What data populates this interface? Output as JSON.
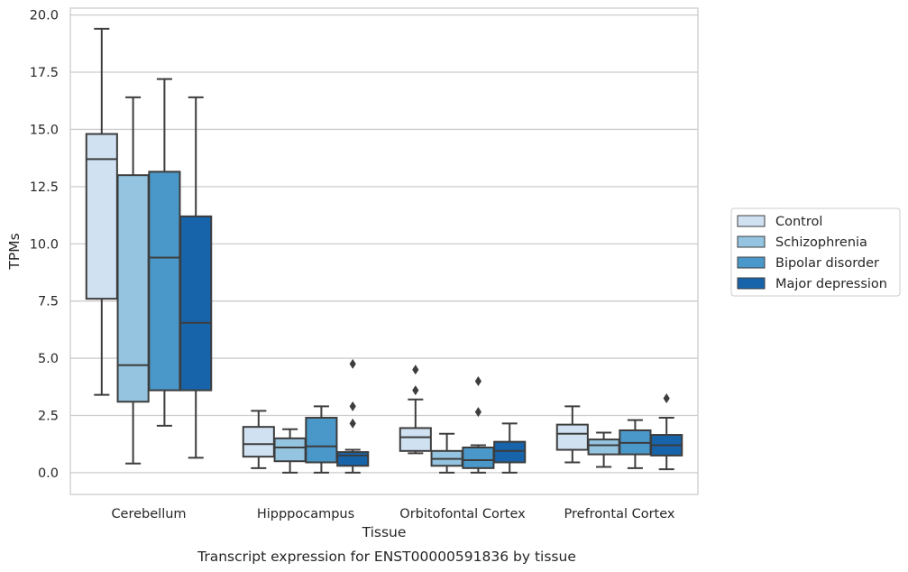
{
  "chart_data": {
    "type": "boxplot",
    "caption": "Transcript expression for ENST00000591836 by tissue",
    "xlabel": "Tissue",
    "ylabel": "TPMs",
    "ylim": [
      -0.95,
      20.3
    ],
    "yticks": [
      "0.0",
      "2.5",
      "5.0",
      "7.5",
      "10.0",
      "12.5",
      "15.0",
      "17.5",
      "20.0"
    ],
    "grid": "horizontal",
    "legend_position": "right",
    "categories": [
      "Cerebellum",
      "Hipppocampus",
      "Orbitofontal Cortex",
      "Prefrontal Cortex"
    ],
    "series": [
      {
        "name": "Control",
        "color": "#d0e1f2",
        "boxes": [
          {
            "whislo": 3.4,
            "q1": 7.6,
            "med": 13.7,
            "q3": 14.8,
            "whishi": 19.4,
            "fliers": []
          },
          {
            "whislo": 0.2,
            "q1": 0.7,
            "med": 1.25,
            "q3": 2.0,
            "whishi": 2.7,
            "fliers": []
          },
          {
            "whislo": 0.85,
            "q1": 0.95,
            "med": 1.55,
            "q3": 1.95,
            "whishi": 3.2,
            "fliers": [
              3.6,
              4.5
            ]
          },
          {
            "whislo": 0.45,
            "q1": 1.0,
            "med": 1.7,
            "q3": 2.1,
            "whishi": 2.9,
            "fliers": []
          }
        ]
      },
      {
        "name": "Schizophrenia",
        "color": "#94c4df",
        "boxes": [
          {
            "whislo": 0.4,
            "q1": 3.1,
            "med": 4.7,
            "q3": 13.0,
            "whishi": 16.4,
            "fliers": []
          },
          {
            "whislo": 0.0,
            "q1": 0.5,
            "med": 1.1,
            "q3": 1.5,
            "whishi": 1.9,
            "fliers": []
          },
          {
            "whislo": 0.0,
            "q1": 0.3,
            "med": 0.6,
            "q3": 0.95,
            "whishi": 1.7,
            "fliers": []
          },
          {
            "whislo": 0.25,
            "q1": 0.8,
            "med": 1.2,
            "q3": 1.45,
            "whishi": 1.75,
            "fliers": []
          }
        ]
      },
      {
        "name": "Bipolar disorder",
        "color": "#4a98c9",
        "boxes": [
          {
            "whislo": 2.05,
            "q1": 3.6,
            "med": 9.4,
            "q3": 13.15,
            "whishi": 17.2,
            "fliers": []
          },
          {
            "whislo": 0.0,
            "q1": 0.45,
            "med": 1.15,
            "q3": 2.4,
            "whishi": 2.9,
            "fliers": []
          },
          {
            "whislo": 0.0,
            "q1": 0.2,
            "med": 0.55,
            "q3": 1.1,
            "whishi": 1.2,
            "fliers": [
              2.65,
              4.0
            ]
          },
          {
            "whislo": 0.2,
            "q1": 0.8,
            "med": 1.3,
            "q3": 1.85,
            "whishi": 2.3,
            "fliers": []
          }
        ]
      },
      {
        "name": "Major depression",
        "color": "#1764ab",
        "boxes": [
          {
            "whislo": 0.65,
            "q1": 3.6,
            "med": 6.55,
            "q3": 11.2,
            "whishi": 16.4,
            "fliers": []
          },
          {
            "whislo": 0.0,
            "q1": 0.3,
            "med": 0.75,
            "q3": 0.9,
            "whishi": 1.0,
            "fliers": [
              2.15,
              2.9,
              4.75
            ]
          },
          {
            "whislo": 0.0,
            "q1": 0.45,
            "med": 0.95,
            "q3": 1.35,
            "whishi": 2.15,
            "fliers": []
          },
          {
            "whislo": 0.15,
            "q1": 0.75,
            "med": 1.2,
            "q3": 1.65,
            "whishi": 2.4,
            "fliers": [
              3.25
            ]
          }
        ]
      }
    ]
  }
}
